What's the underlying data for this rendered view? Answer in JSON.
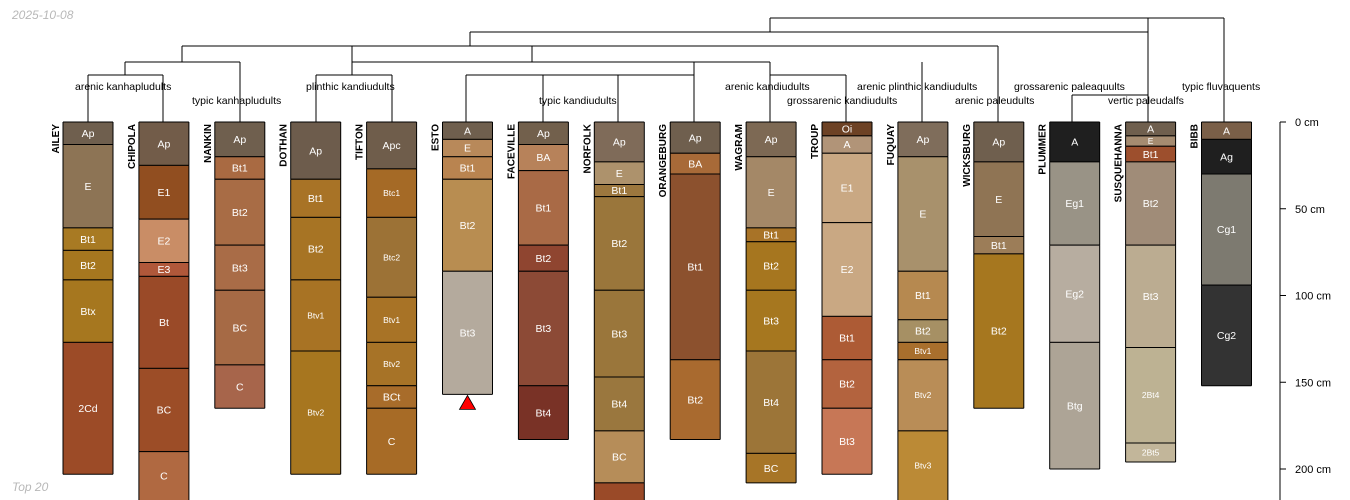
{
  "header": {
    "date": "2025-10-08"
  },
  "footer": {
    "caption": "Top 20"
  },
  "colors": {
    "line": "#000000",
    "marker": "#ff0000",
    "depth_label": "#000000"
  },
  "chart_data": {
    "type": "soil-profile-sketch",
    "title": "",
    "depth_units": "cm",
    "ylim": [
      0,
      220
    ],
    "depth_ticks": [
      {
        "value": 0,
        "label": "0 cm"
      },
      {
        "value": 50,
        "label": "50 cm"
      },
      {
        "value": 100,
        "label": "100 cm"
      },
      {
        "value": 150,
        "label": "150 cm"
      },
      {
        "value": 200,
        "label": "200 cm"
      }
    ],
    "taxa_labels": [
      "arenic kanhapludults",
      "typic kanhapludults",
      "plinthic kandiudults",
      "typic kandiudults",
      "arenic kandiudults",
      "grossarenic kandiudults",
      "arenic plinthic kandiudults",
      "arenic paleudults",
      "grossarenic paleaquults",
      "vertic paleudalfs",
      "typic fluvaquents"
    ],
    "profiles": [
      {
        "name": "AILEY",
        "truncated": false,
        "horizons": [
          {
            "name": "Ap",
            "top": 0,
            "bottom": 13,
            "color": "#6f5f4e"
          },
          {
            "name": "E",
            "top": 13,
            "bottom": 61,
            "color": "#8d7455"
          },
          {
            "name": "Bt1",
            "top": 61,
            "bottom": 74,
            "color": "#a87a23"
          },
          {
            "name": "Bt2",
            "top": 74,
            "bottom": 91,
            "color": "#a6771f"
          },
          {
            "name": "Btx",
            "top": 91,
            "bottom": 127,
            "color": "#a6771f"
          },
          {
            "name": "2Cd",
            "top": 127,
            "bottom": 203,
            "color": "#9c4b27"
          }
        ]
      },
      {
        "name": "CHIPOLA",
        "truncated": true,
        "horizons": [
          {
            "name": "Ap",
            "top": 0,
            "bottom": 25,
            "color": "#725c49"
          },
          {
            "name": "E1",
            "top": 25,
            "bottom": 56,
            "color": "#914e20"
          },
          {
            "name": "E2",
            "top": 56,
            "bottom": 81,
            "color": "#c98d66"
          },
          {
            "name": "E3",
            "top": 81,
            "bottom": 89,
            "color": "#b0583a"
          },
          {
            "name": "Bt",
            "top": 89,
            "bottom": 142,
            "color": "#9a4a28"
          },
          {
            "name": "BC",
            "top": 142,
            "bottom": 190,
            "color": "#9c4d27"
          },
          {
            "name": "C",
            "top": 190,
            "bottom": 220,
            "color": "#b06941"
          }
        ]
      },
      {
        "name": "NANKIN",
        "truncated": false,
        "horizons": [
          {
            "name": "Ap",
            "top": 0,
            "bottom": 20,
            "color": "#6f5f4e"
          },
          {
            "name": "Bt1",
            "top": 20,
            "bottom": 33,
            "color": "#a96a42"
          },
          {
            "name": "Bt2",
            "top": 33,
            "bottom": 71,
            "color": "#a86c45"
          },
          {
            "name": "Bt3",
            "top": 71,
            "bottom": 97,
            "color": "#a96c47"
          },
          {
            "name": "BC",
            "top": 97,
            "bottom": 140,
            "color": "#a66a45"
          },
          {
            "name": "C",
            "top": 140,
            "bottom": 165,
            "color": "#a7654b"
          }
        ]
      },
      {
        "name": "DOTHAN",
        "truncated": false,
        "horizons": [
          {
            "name": "Ap",
            "top": 0,
            "bottom": 33,
            "color": "#6d5c4c"
          },
          {
            "name": "Bt1",
            "top": 33,
            "bottom": 55,
            "color": "#a87326"
          },
          {
            "name": "Bt2",
            "top": 55,
            "bottom": 91,
            "color": "#a77424"
          },
          {
            "name": "Btv1",
            "top": 91,
            "bottom": 132,
            "color": "#a87324"
          },
          {
            "name": "Btv2",
            "top": 132,
            "bottom": 203,
            "color": "#a7761f"
          }
        ]
      },
      {
        "name": "TIFTON",
        "truncated": false,
        "horizons": [
          {
            "name": "Apc",
            "top": 0,
            "bottom": 27,
            "color": "#6f5d4b"
          },
          {
            "name": "Btc1",
            "top": 27,
            "bottom": 55,
            "color": "#a56a26"
          },
          {
            "name": "Btc2",
            "top": 55,
            "bottom": 101,
            "color": "#9c7236"
          },
          {
            "name": "Btv1",
            "top": 101,
            "bottom": 127,
            "color": "#a87326"
          },
          {
            "name": "Btv2",
            "top": 127,
            "bottom": 152,
            "color": "#a77327"
          },
          {
            "name": "BCt",
            "top": 152,
            "bottom": 165,
            "color": "#a86c2a"
          },
          {
            "name": "C",
            "top": 165,
            "bottom": 203,
            "color": "#a76b26"
          }
        ]
      },
      {
        "name": "ESTO",
        "truncated": false,
        "bottom_marker": true,
        "horizons": [
          {
            "name": "A",
            "top": 0,
            "bottom": 10,
            "color": "#6f5f4e"
          },
          {
            "name": "E",
            "top": 10,
            "bottom": 20,
            "color": "#b8895a"
          },
          {
            "name": "Bt1",
            "top": 20,
            "bottom": 33,
            "color": "#b98450"
          },
          {
            "name": "Bt2",
            "top": 33,
            "bottom": 86,
            "color": "#b88d51"
          },
          {
            "name": "Bt3",
            "top": 86,
            "bottom": 157,
            "color": "#b4aa9d"
          }
        ]
      },
      {
        "name": "FACEVILLE",
        "truncated": false,
        "horizons": [
          {
            "name": "Ap",
            "top": 0,
            "bottom": 13,
            "color": "#72604c"
          },
          {
            "name": "BA",
            "top": 13,
            "bottom": 28,
            "color": "#b7825a"
          },
          {
            "name": "Bt1",
            "top": 28,
            "bottom": 71,
            "color": "#a96a46"
          },
          {
            "name": "Bt2",
            "top": 71,
            "bottom": 86,
            "color": "#8f4530"
          },
          {
            "name": "Bt3",
            "top": 86,
            "bottom": 152,
            "color": "#8c4a36"
          },
          {
            "name": "Bt4",
            "top": 152,
            "bottom": 183,
            "color": "#793226"
          }
        ]
      },
      {
        "name": "NORFOLK",
        "truncated": true,
        "horizons": [
          {
            "name": "Ap",
            "top": 0,
            "bottom": 23,
            "color": "#7f6b59"
          },
          {
            "name": "E",
            "top": 23,
            "bottom": 36,
            "color": "#ad926c"
          },
          {
            "name": "Bt1",
            "top": 36,
            "bottom": 43,
            "color": "#9c773e"
          },
          {
            "name": "Bt2",
            "top": 43,
            "bottom": 97,
            "color": "#9a763b"
          },
          {
            "name": "Bt3",
            "top": 97,
            "bottom": 147,
            "color": "#9a763b"
          },
          {
            "name": "Bt4",
            "top": 147,
            "bottom": 178,
            "color": "#9a773e"
          },
          {
            "name": "BC",
            "top": 178,
            "bottom": 208,
            "color": "#b68d59"
          },
          {
            "name": "",
            "top": 208,
            "bottom": 220,
            "color": "#9a4a28"
          }
        ]
      },
      {
        "name": "ORANGEBURG",
        "truncated": false,
        "horizons": [
          {
            "name": "Ap",
            "top": 0,
            "bottom": 18,
            "color": "#6f5f4e"
          },
          {
            "name": "BA",
            "top": 18,
            "bottom": 30,
            "color": "#a86a38"
          },
          {
            "name": "Bt1",
            "top": 30,
            "bottom": 137,
            "color": "#8c512e"
          },
          {
            "name": "Bt2",
            "top": 137,
            "bottom": 183,
            "color": "#a96a2f"
          }
        ]
      },
      {
        "name": "WAGRAM",
        "truncated": false,
        "horizons": [
          {
            "name": "Ap",
            "top": 0,
            "bottom": 20,
            "color": "#7d6954"
          },
          {
            "name": "E",
            "top": 20,
            "bottom": 61,
            "color": "#a48867"
          },
          {
            "name": "Bt1",
            "top": 61,
            "bottom": 69,
            "color": "#a87327"
          },
          {
            "name": "Bt2",
            "top": 69,
            "bottom": 97,
            "color": "#a6761f"
          },
          {
            "name": "Bt3",
            "top": 97,
            "bottom": 132,
            "color": "#a6771f"
          },
          {
            "name": "Bt4",
            "top": 132,
            "bottom": 191,
            "color": "#9c7538"
          },
          {
            "name": "BC",
            "top": 191,
            "bottom": 208,
            "color": "#a77527"
          }
        ]
      },
      {
        "name": "TROUP",
        "truncated": false,
        "horizons": [
          {
            "name": "Oi",
            "top": 0,
            "bottom": 8,
            "color": "#6d4225"
          },
          {
            "name": "A",
            "top": 8,
            "bottom": 18,
            "color": "#b19478"
          },
          {
            "name": "E1",
            "top": 18,
            "bottom": 58,
            "color": "#c9a883"
          },
          {
            "name": "E2",
            "top": 58,
            "bottom": 112,
            "color": "#c9a883"
          },
          {
            "name": "Bt1",
            "top": 112,
            "bottom": 137,
            "color": "#ad5b35"
          },
          {
            "name": "Bt2",
            "top": 137,
            "bottom": 165,
            "color": "#b3633e"
          },
          {
            "name": "Bt3",
            "top": 165,
            "bottom": 203,
            "color": "#c77756"
          }
        ]
      },
      {
        "name": "FUQUAY",
        "truncated": true,
        "horizons": [
          {
            "name": "Ap",
            "top": 0,
            "bottom": 20,
            "color": "#7f6d5b"
          },
          {
            "name": "E",
            "top": 20,
            "bottom": 86,
            "color": "#a8916c"
          },
          {
            "name": "Bt1",
            "top": 86,
            "bottom": 114,
            "color": "#b68950"
          },
          {
            "name": "Bt2",
            "top": 114,
            "bottom": 127,
            "color": "#a69064"
          },
          {
            "name": "Btv1",
            "top": 127,
            "bottom": 137,
            "color": "#a86f2d"
          },
          {
            "name": "Btv2",
            "top": 137,
            "bottom": 178,
            "color": "#b98d57"
          },
          {
            "name": "Btv3",
            "top": 178,
            "bottom": 220,
            "color": "#bb8a36"
          }
        ]
      },
      {
        "name": "WICKSBURG",
        "truncated": false,
        "horizons": [
          {
            "name": "Ap",
            "top": 0,
            "bottom": 23,
            "color": "#6f5f4e"
          },
          {
            "name": "E",
            "top": 23,
            "bottom": 66,
            "color": "#8f7454"
          },
          {
            "name": "Bt1",
            "top": 66,
            "bottom": 76,
            "color": "#9c7d58"
          },
          {
            "name": "Bt2",
            "top": 76,
            "bottom": 165,
            "color": "#a6771f"
          }
        ]
      },
      {
        "name": "PLUMMER",
        "truncated": false,
        "horizons": [
          {
            "name": "A",
            "top": 0,
            "bottom": 23,
            "color": "#1f1f1f"
          },
          {
            "name": "Eg1",
            "top": 23,
            "bottom": 71,
            "color": "#999386"
          },
          {
            "name": "Eg2",
            "top": 71,
            "bottom": 127,
            "color": "#b7ada0"
          },
          {
            "name": "Btg",
            "top": 127,
            "bottom": 200,
            "color": "#ada496"
          }
        ]
      },
      {
        "name": "SUSQUEHANNA",
        "truncated": false,
        "horizons": [
          {
            "name": "A",
            "top": 0,
            "bottom": 8,
            "color": "#6f5f4e"
          },
          {
            "name": "E",
            "top": 8,
            "bottom": 14,
            "color": "#a58b70"
          },
          {
            "name": "Bt1",
            "top": 14,
            "bottom": 23,
            "color": "#9d4f2d"
          },
          {
            "name": "Bt2",
            "top": 23,
            "bottom": 71,
            "color": "#a08c78"
          },
          {
            "name": "Bt3",
            "top": 71,
            "bottom": 130,
            "color": "#bbac91"
          },
          {
            "name": "2Bt4",
            "top": 130,
            "bottom": 185,
            "color": "#bdb293"
          },
          {
            "name": "2Bt5",
            "top": 185,
            "bottom": 196,
            "color": "#c2b69a"
          }
        ]
      },
      {
        "name": "BIBB",
        "truncated": false,
        "horizons": [
          {
            "name": "A",
            "top": 0,
            "bottom": 10,
            "color": "#7a5f48"
          },
          {
            "name": "Ag",
            "top": 10,
            "bottom": 30,
            "color": "#1f1f1f"
          },
          {
            "name": "Cg1",
            "top": 30,
            "bottom": 94,
            "color": "#7d7a70"
          },
          {
            "name": "Cg2",
            "top": 94,
            "bottom": 152,
            "color": "#333333"
          }
        ]
      }
    ]
  }
}
